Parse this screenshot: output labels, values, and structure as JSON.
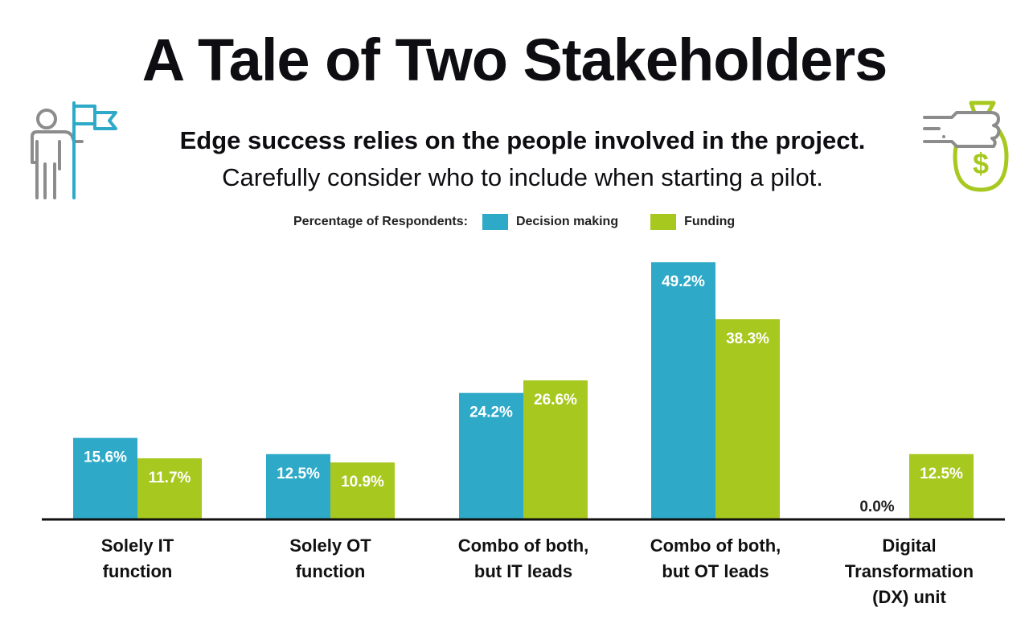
{
  "title": "A Tale of Two Stakeholders",
  "subtitle": "Edge success relies on the people involved in the project.",
  "subtitle2": "Carefully consider who to include when starting a pilot.",
  "legend": {
    "heading": "Percentage of Respondents:",
    "items": [
      {
        "label": "Decision making",
        "color": "#2eaac8"
      },
      {
        "label": "Funding",
        "color": "#a7c81f"
      }
    ]
  },
  "icons": [
    "person-with-flag-icon",
    "hand-with-money-bag-icon"
  ],
  "chart_data": {
    "type": "bar",
    "title": "A Tale of Two Stakeholders",
    "xlabel": "",
    "ylabel": "Percentage of Respondents",
    "ylim": [
      0,
      50
    ],
    "grid": false,
    "legend_position": "top-center",
    "categories": [
      [
        "Solely IT",
        "function"
      ],
      [
        "Solely OT",
        "function"
      ],
      [
        "Combo of both,",
        "but IT leads"
      ],
      [
        "Combo of both,",
        "but OT leads"
      ],
      [
        "Digital",
        "Transformation",
        "(DX) unit"
      ]
    ],
    "series": [
      {
        "name": "Decision making",
        "color": "#2eaac8",
        "values": [
          15.6,
          12.5,
          24.2,
          49.2,
          0.0
        ],
        "labels": [
          "15.6%",
          "12.5%",
          "24.2%",
          "49.2%",
          "0.0%"
        ]
      },
      {
        "name": "Funding",
        "color": "#a7c81f",
        "values": [
          11.7,
          10.9,
          26.6,
          38.3,
          12.5
        ],
        "labels": [
          "11.7%",
          "10.9%",
          "26.6%",
          "38.3%",
          "12.5%"
        ]
      }
    ]
  }
}
